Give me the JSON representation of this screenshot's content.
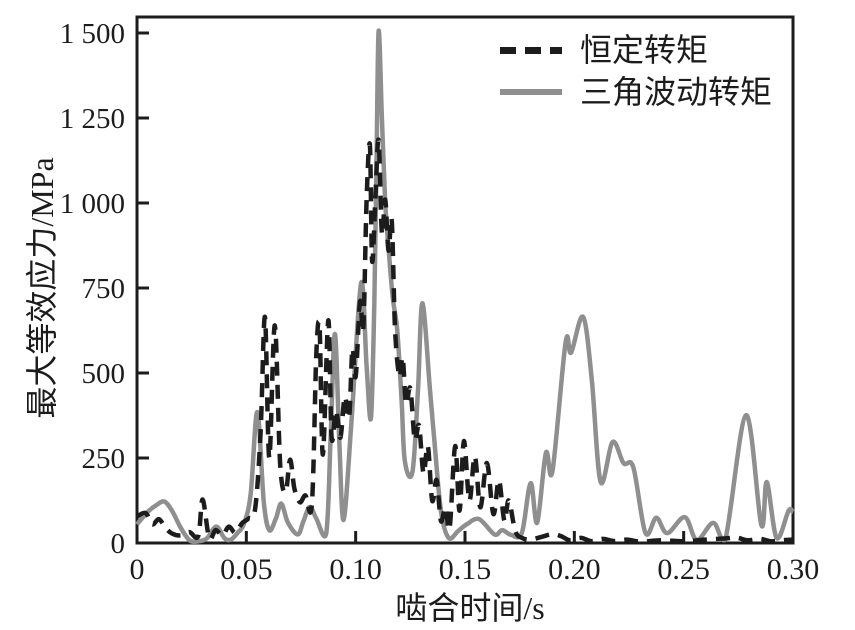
{
  "chart_data": {
    "type": "line",
    "xlabel": "啮合时间/s",
    "ylabel": "最大等效应力/MPa",
    "xlim": [
      0,
      0.3
    ],
    "ylim": [
      0,
      1500
    ],
    "grid": false,
    "axis_color": "#1c1c1c",
    "background": "#ffffff",
    "xticks": {
      "values": [
        0,
        0.05,
        0.1,
        0.15,
        0.2,
        0.25,
        0.3
      ],
      "labels": [
        "0",
        "0.05",
        "0.10",
        "0.15",
        "0.20",
        "0.25",
        "0.30"
      ]
    },
    "yticks": {
      "values": [
        0,
        250,
        500,
        750,
        1000,
        1250,
        1500
      ],
      "labels": [
        "0",
        "250",
        "500",
        "750",
        "1 000",
        "1 250",
        "1 500"
      ]
    },
    "legend": {
      "position": "top-right-inside",
      "items": [
        {
          "label": "恒定转矩",
          "style": "dashed",
          "color": "#1c1c1c"
        },
        {
          "label": "三角波动转矩",
          "style": "solid",
          "color": "#8f8f8f"
        }
      ]
    },
    "series": [
      {
        "name": "恒定转矩",
        "style": "dashed",
        "color": "#1c1c1c",
        "points": [
          [
            0,
            78
          ],
          [
            0.004,
            88
          ],
          [
            0.007,
            55
          ],
          [
            0.01,
            70
          ],
          [
            0.013,
            45
          ],
          [
            0.016,
            28
          ],
          [
            0.02,
            22
          ],
          [
            0.024,
            32
          ],
          [
            0.028,
            20
          ],
          [
            0.03,
            128
          ],
          [
            0.033,
            15
          ],
          [
            0.036,
            38
          ],
          [
            0.039,
            22
          ],
          [
            0.042,
            48
          ],
          [
            0.045,
            30
          ],
          [
            0.048,
            58
          ],
          [
            0.051,
            72
          ],
          [
            0.054,
            100
          ],
          [
            0.0565,
            320
          ],
          [
            0.0585,
            665
          ],
          [
            0.0605,
            250
          ],
          [
            0.063,
            640
          ],
          [
            0.0655,
            230
          ],
          [
            0.068,
            150
          ],
          [
            0.07,
            245
          ],
          [
            0.072,
            160
          ],
          [
            0.0745,
            120
          ],
          [
            0.077,
            140
          ],
          [
            0.08,
            115
          ],
          [
            0.082,
            555
          ],
          [
            0.0835,
            630
          ],
          [
            0.085,
            260
          ],
          [
            0.0875,
            655
          ],
          [
            0.089,
            310
          ],
          [
            0.091,
            390
          ],
          [
            0.093,
            310
          ],
          [
            0.095,
            430
          ],
          [
            0.097,
            370
          ],
          [
            0.0985,
            570
          ],
          [
            0.1,
            490
          ],
          [
            0.102,
            710
          ],
          [
            0.1035,
            630
          ],
          [
            0.105,
            1010
          ],
          [
            0.1065,
            1170
          ],
          [
            0.1075,
            830
          ],
          [
            0.109,
            1010
          ],
          [
            0.1105,
            1185
          ],
          [
            0.112,
            910
          ],
          [
            0.1135,
            1010
          ],
          [
            0.115,
            860
          ],
          [
            0.1165,
            950
          ],
          [
            0.118,
            630
          ],
          [
            0.12,
            490
          ],
          [
            0.1215,
            545
          ],
          [
            0.123,
            410
          ],
          [
            0.125,
            455
          ],
          [
            0.127,
            305
          ],
          [
            0.129,
            345
          ],
          [
            0.131,
            205
          ],
          [
            0.133,
            285
          ],
          [
            0.135,
            125
          ],
          [
            0.137,
            185
          ],
          [
            0.139,
            65
          ],
          [
            0.141,
            105
          ],
          [
            0.143,
            45
          ],
          [
            0.1455,
            285
          ],
          [
            0.1475,
            95
          ],
          [
            0.1495,
            300
          ],
          [
            0.152,
            125
          ],
          [
            0.1545,
            255
          ],
          [
            0.157,
            105
          ],
          [
            0.16,
            235
          ],
          [
            0.163,
            85
          ],
          [
            0.1655,
            185
          ],
          [
            0.168,
            65
          ],
          [
            0.17,
            125
          ],
          [
            0.173,
            35
          ],
          [
            0.176,
            15
          ],
          [
            0.18,
            10
          ],
          [
            0.185,
            18
          ],
          [
            0.19,
            26
          ],
          [
            0.194,
            20
          ],
          [
            0.198,
            8
          ],
          [
            0.203,
            15
          ],
          [
            0.208,
            5
          ],
          [
            0.213,
            12
          ],
          [
            0.218,
            6
          ],
          [
            0.224,
            10
          ],
          [
            0.23,
            4
          ],
          [
            0.24,
            8
          ],
          [
            0.25,
            5
          ],
          [
            0.26,
            10
          ],
          [
            0.27,
            14
          ],
          [
            0.2745,
            16
          ],
          [
            0.279,
            8
          ],
          [
            0.285,
            12
          ],
          [
            0.29,
            5
          ],
          [
            0.295,
            8
          ],
          [
            0.3,
            10
          ]
        ]
      },
      {
        "name": "三角波动转矩",
        "style": "solid",
        "color": "#8f8f8f",
        "points": [
          [
            0,
            55
          ],
          [
            0.005,
            92
          ],
          [
            0.009,
            112
          ],
          [
            0.0125,
            122
          ],
          [
            0.016,
            95
          ],
          [
            0.02,
            45
          ],
          [
            0.024,
            8
          ],
          [
            0.028,
            5
          ],
          [
            0.032,
            14
          ],
          [
            0.035,
            42
          ],
          [
            0.037,
            46
          ],
          [
            0.04,
            14
          ],
          [
            0.043,
            10
          ],
          [
            0.046,
            30
          ],
          [
            0.049,
            58
          ],
          [
            0.052,
            145
          ],
          [
            0.055,
            385
          ],
          [
            0.058,
            120
          ],
          [
            0.0605,
            38
          ],
          [
            0.0635,
            72
          ],
          [
            0.066,
            116
          ],
          [
            0.069,
            60
          ],
          [
            0.0735,
            25
          ],
          [
            0.076,
            62
          ],
          [
            0.079,
            106
          ],
          [
            0.082,
            72
          ],
          [
            0.0865,
            26
          ],
          [
            0.0885,
            300
          ],
          [
            0.0905,
            615
          ],
          [
            0.0925,
            300
          ],
          [
            0.0945,
            68
          ],
          [
            0.098,
            350
          ],
          [
            0.1025,
            765
          ],
          [
            0.105,
            520
          ],
          [
            0.107,
            368
          ],
          [
            0.1085,
            700
          ],
          [
            0.1095,
            1100
          ],
          [
            0.1105,
            1505
          ],
          [
            0.112,
            1250
          ],
          [
            0.1135,
            1000
          ],
          [
            0.115,
            870
          ],
          [
            0.117,
            720
          ],
          [
            0.119,
            627
          ],
          [
            0.121,
            420
          ],
          [
            0.1225,
            240
          ],
          [
            0.126,
            210
          ],
          [
            0.1285,
            450
          ],
          [
            0.1305,
            705
          ],
          [
            0.134,
            450
          ],
          [
            0.136,
            300
          ],
          [
            0.139,
            95
          ],
          [
            0.1425,
            15
          ],
          [
            0.147,
            36
          ],
          [
            0.151,
            56
          ],
          [
            0.1565,
            70
          ],
          [
            0.1635,
            25
          ],
          [
            0.167,
            38
          ],
          [
            0.171,
            24
          ],
          [
            0.176,
            30
          ],
          [
            0.18,
            176
          ],
          [
            0.183,
            60
          ],
          [
            0.187,
            265
          ],
          [
            0.19,
            212
          ],
          [
            0.196,
            590
          ],
          [
            0.1985,
            560
          ],
          [
            0.204,
            665
          ],
          [
            0.208,
            480
          ],
          [
            0.212,
            180
          ],
          [
            0.2175,
            297
          ],
          [
            0.2225,
            235
          ],
          [
            0.227,
            222
          ],
          [
            0.2325,
            30
          ],
          [
            0.2375,
            74
          ],
          [
            0.2425,
            29
          ],
          [
            0.2505,
            76
          ],
          [
            0.256,
            9
          ],
          [
            0.2635,
            59
          ],
          [
            0.269,
            9
          ],
          [
            0.2785,
            376
          ],
          [
            0.2855,
            53
          ],
          [
            0.288,
            179
          ],
          [
            0.2925,
            15
          ],
          [
            0.298,
            95
          ],
          [
            0.3,
            90
          ]
        ]
      }
    ]
  }
}
